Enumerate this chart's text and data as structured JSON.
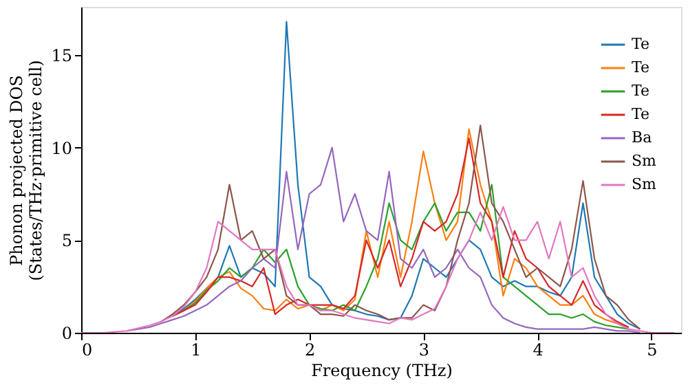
{
  "chart_data": {
    "type": "line",
    "xlabel": "Frequency (THz)",
    "ylabel": "Phonon projected DOS\n(States/THz·primitive cell)",
    "x": [
      0,
      0.1,
      0.2,
      0.3,
      0.4,
      0.5,
      0.6,
      0.7,
      0.8,
      0.9,
      1.0,
      1.1,
      1.2,
      1.3,
      1.4,
      1.5,
      1.6,
      1.7,
      1.8,
      1.9,
      2.0,
      2.1,
      2.2,
      2.3,
      2.4,
      2.5,
      2.6,
      2.7,
      2.8,
      2.9,
      3.0,
      3.1,
      3.2,
      3.3,
      3.4,
      3.5,
      3.6,
      3.7,
      3.8,
      3.9,
      4.0,
      4.1,
      4.2,
      4.3,
      4.4,
      4.5,
      4.6,
      4.7,
      4.8,
      4.9,
      5.0,
      5.1,
      5.2
    ],
    "xlim": [
      0,
      5.26
    ],
    "xticks": [
      0,
      1,
      2,
      3,
      4,
      5
    ],
    "ylim": [
      0,
      17.6
    ],
    "yticks": [
      0,
      5,
      10,
      15
    ],
    "grid": false,
    "legend": "top right",
    "line_style": "solid",
    "marker": "none",
    "series": [
      {
        "name": "Te",
        "color": "#1f77b4",
        "values": [
          null,
          null,
          null,
          null,
          null,
          null,
          null,
          null,
          0.9,
          1.3,
          1.8,
          2.4,
          3.0,
          4.7,
          3.0,
          3.5,
          3.2,
          2.5,
          16.8,
          8.0,
          3.0,
          2.5,
          1.5,
          1.3,
          1.2,
          1.0,
          0.9,
          0.7,
          0.8,
          2.0,
          4.0,
          3.5,
          3.0,
          4.0,
          5.0,
          4.5,
          3.0,
          2.5,
          2.8,
          2.5,
          2.5,
          2.2,
          2.0,
          3.0,
          7.0,
          3.0,
          2.0,
          1.0,
          0.5,
          0.2,
          null,
          null,
          null
        ]
      },
      {
        "name": "Te",
        "color": "#ff7f0e",
        "values": [
          null,
          null,
          null,
          null,
          null,
          null,
          null,
          null,
          0.9,
          1.2,
          1.7,
          2.4,
          3.0,
          3.3,
          2.4,
          2.0,
          1.3,
          1.2,
          1.8,
          1.3,
          1.5,
          1.2,
          1.5,
          1.2,
          1.8,
          5.5,
          3.0,
          6.0,
          3.0,
          6.0,
          9.8,
          7.0,
          5.0,
          6.0,
          11.0,
          8.0,
          6.0,
          2.0,
          4.0,
          3.5,
          2.5,
          2.0,
          1.5,
          1.5,
          2.0,
          1.0,
          0.7,
          0.5,
          0.3,
          null,
          null,
          null,
          null
        ]
      },
      {
        "name": "Te",
        "color": "#2ca02c",
        "values": [
          null,
          null,
          null,
          null,
          null,
          null,
          null,
          null,
          0.9,
          1.2,
          1.6,
          2.3,
          2.8,
          3.5,
          3.0,
          3.5,
          4.5,
          3.8,
          4.5,
          2.5,
          1.5,
          1.3,
          1.2,
          1.5,
          1.2,
          2.5,
          4.0,
          7.0,
          5.0,
          4.5,
          6.0,
          7.0,
          5.5,
          6.5,
          6.5,
          5.5,
          8.0,
          3.0,
          2.5,
          2.0,
          1.5,
          1.0,
          1.0,
          0.8,
          1.0,
          0.6,
          0.4,
          0.3,
          0.2,
          null,
          null,
          null,
          null
        ]
      },
      {
        "name": "Te",
        "color": "#d62728",
        "values": [
          null,
          null,
          null,
          null,
          null,
          null,
          null,
          null,
          0.9,
          1.2,
          1.5,
          2.2,
          3.0,
          3.0,
          2.8,
          2.5,
          3.5,
          1.0,
          1.5,
          1.8,
          1.5,
          1.5,
          1.5,
          1.3,
          2.0,
          5.0,
          3.5,
          5.0,
          2.5,
          4.0,
          6.0,
          5.5,
          6.0,
          7.5,
          10.5,
          7.0,
          6.0,
          3.0,
          5.5,
          4.0,
          3.5,
          2.5,
          2.0,
          1.5,
          2.8,
          1.5,
          1.0,
          0.6,
          0.3,
          null,
          null,
          null,
          null
        ]
      },
      {
        "name": "Ba",
        "color": "#9467bd",
        "values": [
          null,
          null,
          null,
          null,
          0.1,
          0.2,
          0.3,
          0.5,
          0.7,
          0.9,
          1.2,
          1.5,
          2.0,
          2.5,
          2.8,
          3.5,
          4.0,
          3.5,
          8.7,
          4.5,
          7.5,
          8.0,
          10.0,
          6.0,
          7.5,
          5.5,
          5.0,
          8.7,
          4.0,
          3.5,
          4.5,
          3.0,
          3.5,
          4.5,
          3.5,
          3.0,
          1.5,
          0.8,
          0.5,
          0.3,
          0.2,
          0.2,
          0.2,
          0.2,
          0.2,
          0.3,
          0.2,
          0.1,
          0.1,
          0,
          null,
          null,
          null
        ]
      },
      {
        "name": "Sm",
        "color": "#8c564b",
        "values": [
          null,
          null,
          null,
          null,
          null,
          null,
          null,
          0.6,
          1.0,
          1.5,
          2.2,
          3.0,
          4.5,
          8.0,
          5.0,
          5.5,
          4.0,
          4.5,
          2.0,
          1.5,
          1.5,
          1.0,
          1.0,
          0.9,
          1.5,
          1.2,
          1.0,
          0.7,
          0.8,
          0.8,
          1.5,
          1.2,
          2.5,
          5.0,
          7.0,
          11.2,
          7.0,
          6.0,
          4.5,
          3.0,
          3.5,
          3.0,
          2.5,
          4.5,
          8.2,
          4.0,
          2.0,
          1.5,
          0.7,
          0.2,
          null,
          null,
          null
        ]
      },
      {
        "name": "Sm",
        "color": "#e377c2",
        "values": [
          0,
          0,
          0,
          0.05,
          0.1,
          0.25,
          0.4,
          0.6,
          0.9,
          1.4,
          2.2,
          3.5,
          6.0,
          5.5,
          5.0,
          4.5,
          4.5,
          4.5,
          2.5,
          1.5,
          1.5,
          1.2,
          1.2,
          1.0,
          0.8,
          0.7,
          0.6,
          0.5,
          0.8,
          0.7,
          1.0,
          1.3,
          2.5,
          4.0,
          5.0,
          6.5,
          5.0,
          6.8,
          5.0,
          5.0,
          6.0,
          4.0,
          6.0,
          3.0,
          3.5,
          2.0,
          1.0,
          0.5,
          0.2,
          0.1,
          0,
          0,
          0
        ]
      }
    ]
  }
}
